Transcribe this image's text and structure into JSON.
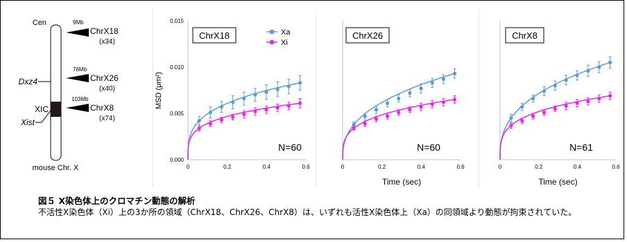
{
  "chromosome": {
    "cen_label": "Cen",
    "dxz4_label": "Dxz4",
    "xic_label": "XIC",
    "xist_label": "Xist",
    "bottom_label": "mouse Chr. X",
    "loci": [
      {
        "pos": "9Mb",
        "name": "ChrX18",
        "copies": "(x34)"
      },
      {
        "pos": "76Mb",
        "name": "ChrX26",
        "copies": "(x40)"
      },
      {
        "pos": "103Mb",
        "name": "ChrX8",
        "copies": "(x74)"
      }
    ]
  },
  "chart_data": [
    {
      "type": "line",
      "title": "ChrX18",
      "ylabel": "MSD (μm²)",
      "xlabel": "",
      "xlim": [
        0,
        0.6
      ],
      "ylim": [
        0,
        0.015
      ],
      "xticks": [
        "0",
        "0.2",
        "0.4",
        "0.6"
      ],
      "yticks": [
        "0.000",
        "0.005",
        "0.010",
        "0.015"
      ],
      "annotation": "N=60",
      "legend": [
        {
          "name": "Xa",
          "color": "#5b9bd5"
        },
        {
          "name": "Xi",
          "color": "#ee22ee"
        }
      ],
      "x": [
        0.057,
        0.114,
        0.171,
        0.228,
        0.285,
        0.342,
        0.399,
        0.456,
        0.513,
        0.57
      ],
      "series": [
        {
          "name": "Xa",
          "color": "#5b9bd5",
          "values": [
            0.0042,
            0.0051,
            0.0057,
            0.0062,
            0.0066,
            0.007,
            0.0073,
            0.0076,
            0.0079,
            0.0083
          ],
          "errors": [
            0.0005,
            0.0006,
            0.0006,
            0.0007,
            0.0007,
            0.0007,
            0.0008,
            0.0008,
            0.0008,
            0.0008
          ]
        },
        {
          "name": "Xi",
          "color": "#ee22ee",
          "values": [
            0.0034,
            0.0039,
            0.0043,
            0.0046,
            0.0049,
            0.0052,
            0.0054,
            0.0056,
            0.0058,
            0.0061
          ],
          "errors": [
            0.0003,
            0.0003,
            0.0003,
            0.0003,
            0.0004,
            0.0004,
            0.0004,
            0.0004,
            0.0004,
            0.0005
          ]
        }
      ]
    },
    {
      "type": "line",
      "title": "ChrX26",
      "ylabel": "",
      "xlabel": "Time (sec)",
      "xlim": [
        0,
        0.6
      ],
      "ylim": [
        0,
        0.015
      ],
      "xticks": [
        "0",
        "0.2",
        "0.4",
        "0.6"
      ],
      "yticks": [],
      "annotation": "N=60",
      "legend": [],
      "x": [
        0.057,
        0.114,
        0.171,
        0.228,
        0.285,
        0.342,
        0.399,
        0.456,
        0.513,
        0.57
      ],
      "series": [
        {
          "name": "Xa",
          "color": "#5b9bd5",
          "values": [
            0.0038,
            0.0047,
            0.0054,
            0.0061,
            0.0066,
            0.0072,
            0.0077,
            0.0083,
            0.0087,
            0.0093
          ],
          "errors": [
            0.0003,
            0.0003,
            0.0004,
            0.0004,
            0.0004,
            0.0004,
            0.0005,
            0.0005,
            0.0005,
            0.0005
          ]
        },
        {
          "name": "Xi",
          "color": "#ee22ee",
          "values": [
            0.0034,
            0.0039,
            0.0044,
            0.0047,
            0.0051,
            0.0054,
            0.0057,
            0.006,
            0.0062,
            0.0065
          ],
          "errors": [
            0.0002,
            0.0003,
            0.0003,
            0.0003,
            0.0003,
            0.0003,
            0.0004,
            0.0004,
            0.0004,
            0.0004
          ]
        }
      ]
    },
    {
      "type": "line",
      "title": "ChrX8",
      "ylabel": "",
      "xlabel": "Time (sec)",
      "xlim": [
        0,
        0.6
      ],
      "ylim": [
        0,
        0.015
      ],
      "xticks": [
        "0",
        "0.2",
        "0.4",
        "0.6"
      ],
      "yticks": [],
      "annotation": "N=61",
      "legend": [],
      "x": [
        0.057,
        0.114,
        0.171,
        0.228,
        0.285,
        0.342,
        0.399,
        0.456,
        0.513,
        0.57
      ],
      "series": [
        {
          "name": "Xa",
          "color": "#5b9bd5",
          "values": [
            0.0045,
            0.0057,
            0.0066,
            0.0074,
            0.008,
            0.0086,
            0.0091,
            0.0096,
            0.01,
            0.0105
          ],
          "errors": [
            0.0004,
            0.0004,
            0.0004,
            0.0005,
            0.0005,
            0.0005,
            0.0005,
            0.0006,
            0.0006,
            0.0006
          ]
        },
        {
          "name": "Xi",
          "color": "#ee22ee",
          "values": [
            0.0037,
            0.0042,
            0.0047,
            0.0051,
            0.0055,
            0.0058,
            0.0061,
            0.0063,
            0.0066,
            0.0069
          ],
          "errors": [
            0.0003,
            0.0003,
            0.0003,
            0.0003,
            0.0003,
            0.0004,
            0.0004,
            0.0004,
            0.0004,
            0.0004
          ]
        }
      ]
    }
  ],
  "caption": {
    "title": "図５ X染色体上のクロマチン動態の解析",
    "body": "不活性X染色体（Xi）上の3か所の領域（ChrX18、ChrX26、ChrX8）は、いずれも活性X染色体上（Xa）の同領域より動態が拘束されていた。"
  }
}
